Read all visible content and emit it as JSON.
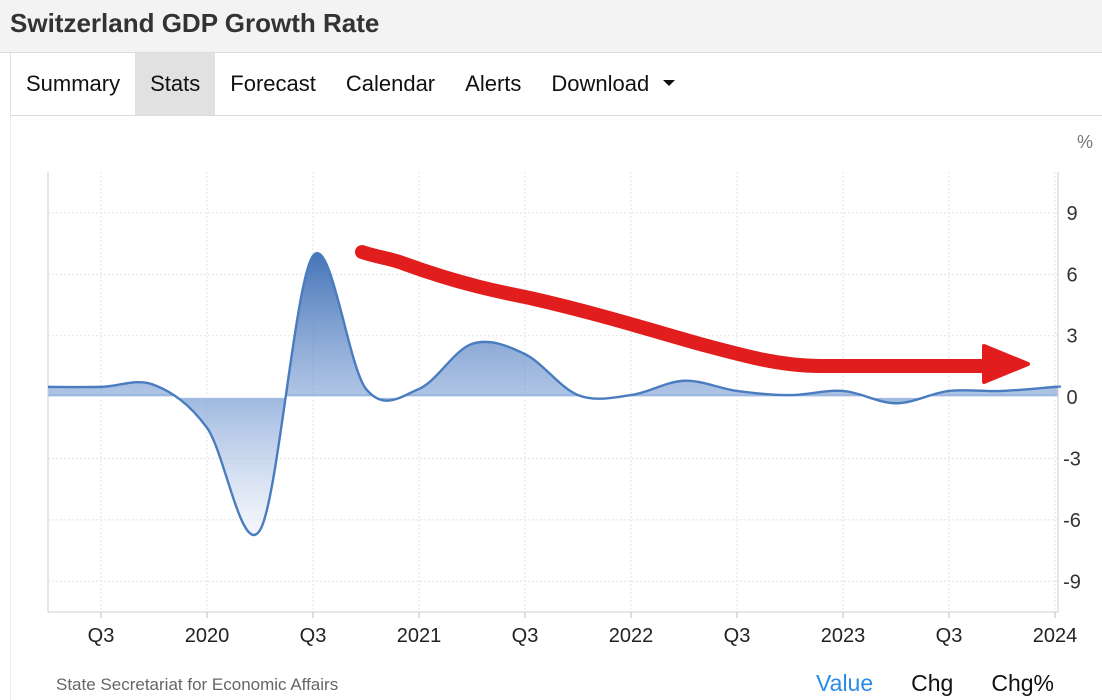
{
  "page": {
    "title": "Switzerland GDP Growth Rate"
  },
  "nav": {
    "tabs": [
      {
        "label": "Summary",
        "active": false
      },
      {
        "label": "Stats",
        "active": true
      },
      {
        "label": "Forecast",
        "active": false
      },
      {
        "label": "Calendar",
        "active": false
      },
      {
        "label": "Alerts",
        "active": false
      },
      {
        "label": "Download",
        "active": false,
        "icon": "caret-down-icon"
      }
    ]
  },
  "footer": {
    "source": "State Secretariat for Economic Affairs",
    "chart_tabs": [
      {
        "label": "Value",
        "active": true
      },
      {
        "label": "Chg",
        "active": false
      },
      {
        "label": "Chg%",
        "active": false
      }
    ]
  },
  "colors": {
    "line": "#4a7cc0",
    "fill_top": "#3f6fb5",
    "annotation_arrow": "#e21d1d",
    "active_tab": "#2a8be8"
  },
  "chart_data": {
    "type": "area",
    "title": "",
    "xlabel": "",
    "ylabel": "",
    "unit_label": "%",
    "x": [
      "2019-Q3",
      "2019-Q4",
      "2020-Q1",
      "2020-Q2",
      "2020-Q3",
      "2020-Q4",
      "2021-Q1",
      "2021-Q2",
      "2021-Q3",
      "2021-Q4",
      "2022-Q1",
      "2022-Q2",
      "2022-Q3",
      "2022-Q4",
      "2023-Q1",
      "2023-Q2",
      "2023-Q3",
      "2023-Q4",
      "2024-Q1"
    ],
    "values": [
      0.5,
      0.6,
      -1.5,
      -6.5,
      6.9,
      0.4,
      0.4,
      2.6,
      2.1,
      0.1,
      0.1,
      0.8,
      0.3,
      0.1,
      0.3,
      -0.3,
      0.3,
      0.3,
      0.5
    ],
    "x_tick_labels": [
      "Q3",
      "2020",
      "Q3",
      "2021",
      "Q3",
      "2022",
      "Q3",
      "2023",
      "Q3",
      "2024"
    ],
    "y_ticks": [
      9,
      6,
      3,
      0,
      -3,
      -6,
      -9
    ],
    "ylim": [
      -10.5,
      11
    ],
    "grid": true,
    "annotation": {
      "type": "arrow",
      "shape": "decreasing trend from about 7 down to about 1.5, rightward"
    }
  }
}
